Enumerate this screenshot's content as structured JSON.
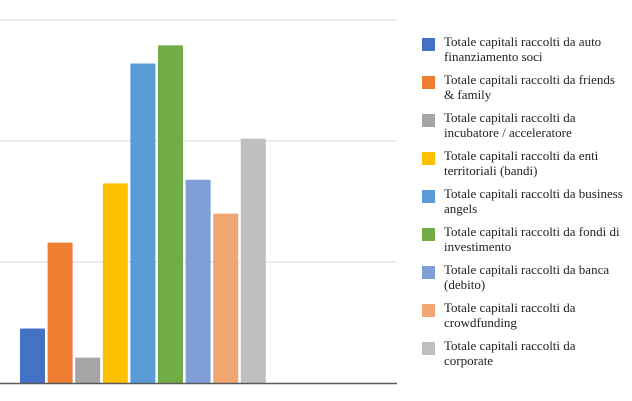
{
  "chart_data": {
    "type": "bar",
    "title": "",
    "xlabel": "",
    "ylabel": "",
    "ylim": [
      0,
      3.2
    ],
    "grid": true,
    "gridlines": [
      1,
      2,
      3
    ],
    "legend_position": "right",
    "series": [
      {
        "name": "Totale capitali raccolti da auto\nfinanziamento soci",
        "value": 0.45,
        "color": "#4472C4"
      },
      {
        "name": "Totale capitali raccolti da friends\n& family",
        "value": 1.16,
        "color": "#ED7D31"
      },
      {
        "name": "Totale capitali raccolti da\nincubatore / acceleratore",
        "value": 0.21,
        "color": "#A5A5A5"
      },
      {
        "name": "Totale capitali raccolti da enti\nterritoriali (bandi)",
        "value": 1.65,
        "color": "#FFC000"
      },
      {
        "name": "Totale capitali raccolti da business\nangels",
        "value": 2.64,
        "color": "#5B9BD5"
      },
      {
        "name": "Totale capitali raccolti da fondi di\ninvestimento",
        "value": 2.79,
        "color": "#70AD47"
      },
      {
        "name": "Totale capitali raccolti da banca\n(debito)",
        "value": 1.68,
        "color": "#7F9ED6"
      },
      {
        "name": "Totale capitali raccolti da\ncrowdfunding",
        "value": 1.4,
        "color": "#F0A672"
      },
      {
        "name": "Totale capitali raccolti da\ncorporate",
        "value": 2.02,
        "color": "#BFBFBF"
      }
    ]
  }
}
